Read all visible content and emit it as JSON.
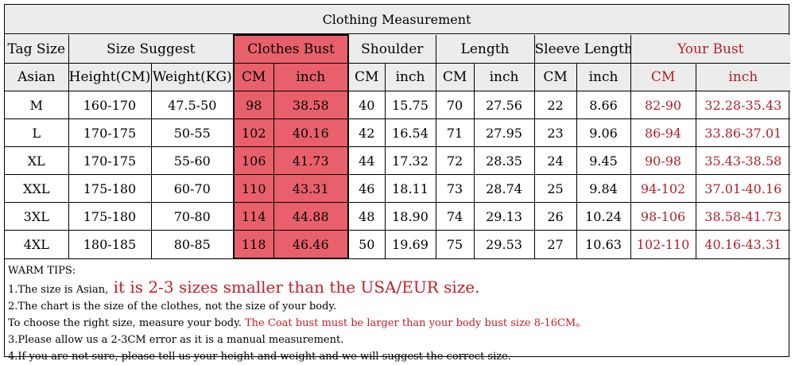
{
  "title": "Clothing Measurement",
  "headers": {
    "tag_size": "Tag Size",
    "size_suggest": "Size Suggest",
    "clothes_bust": "Clothes Bust",
    "shoulder": "Shoulder",
    "length": "Length",
    "sleeve_length": "Sleeve Length",
    "your_bust": "Your Bust"
  },
  "subheaders": {
    "asian": "Asian",
    "height": "Height(CM)",
    "weight": "Weight(KG)",
    "bust_cm": "CM",
    "bust_inch": "inch",
    "shoulder_cm": "CM",
    "shoulder_inch": "inch",
    "length_cm": "CM",
    "length_inch": "inch",
    "sleeve_cm": "CM",
    "sleeve_inch": "inch",
    "your_cm": "CM",
    "your_inch": "inch"
  },
  "rows": [
    {
      "size": "M",
      "height": "160-170",
      "weight": "47.5-50",
      "bust_cm": "98",
      "bust_inch": "38.58",
      "shoulder_cm": "40",
      "shoulder_inch": "15.75",
      "length_cm": "70",
      "length_inch": "27.56",
      "sleeve_cm": "22",
      "sleeve_inch": "8.66",
      "your_cm": "82-90",
      "your_inch": "32.28-35.43"
    },
    {
      "size": "L",
      "height": "170-175",
      "weight": "50-55",
      "bust_cm": "102",
      "bust_inch": "40.16",
      "shoulder_cm": "42",
      "shoulder_inch": "16.54",
      "length_cm": "71",
      "length_inch": "27.95",
      "sleeve_cm": "23",
      "sleeve_inch": "9.06",
      "your_cm": "86-94",
      "your_inch": "33.86-37.01"
    },
    {
      "size": "XL",
      "height": "170-175",
      "weight": "55-60",
      "bust_cm": "106",
      "bust_inch": "41.73",
      "shoulder_cm": "44",
      "shoulder_inch": "17.32",
      "length_cm": "72",
      "length_inch": "28.35",
      "sleeve_cm": "24",
      "sleeve_inch": "9.45",
      "your_cm": "90-98",
      "your_inch": "35.43-38.58"
    },
    {
      "size": "XXL",
      "height": "175-180",
      "weight": "60-70",
      "bust_cm": "110",
      "bust_inch": "43.31",
      "shoulder_cm": "46",
      "shoulder_inch": "18.11",
      "length_cm": "73",
      "length_inch": "28.74",
      "sleeve_cm": "25",
      "sleeve_inch": "9.84",
      "your_cm": "94-102",
      "your_inch": "37.01-40.16"
    },
    {
      "size": "3XL",
      "height": "175-180",
      "weight": "70-80",
      "bust_cm": "114",
      "bust_inch": "44.88",
      "shoulder_cm": "48",
      "shoulder_inch": "18.90",
      "length_cm": "74",
      "length_inch": "29.13",
      "sleeve_cm": "26",
      "sleeve_inch": "10.24",
      "your_cm": "98-106",
      "your_inch": "38.58-41.73"
    },
    {
      "size": "4XL",
      "height": "180-185",
      "weight": "80-85",
      "bust_cm": "118",
      "bust_inch": "46.46",
      "shoulder_cm": "50",
      "shoulder_inch": "19.69",
      "length_cm": "75",
      "length_inch": "29.53",
      "sleeve_cm": "27",
      "sleeve_inch": "10.63",
      "your_cm": "102-110",
      "your_inch": "40.16-43.31"
    }
  ],
  "tips": {
    "heading": "WARM TIPS:",
    "tip1_prefix": "1.The size is Asian,",
    "tip1_highlight": " it is 2-3 sizes smaller than the USA/EUR size.",
    "tip2": "2.The chart is the size of the clothes, not the size of your body.",
    "tip2b_prefix": "To choose the right size, measure your body.",
    "tip2b_highlight": " The Coat bust must be larger than your body bust size 8-16CM。",
    "tip3": "3.Please allow us a 2-3CM error as it is a manual measurement.",
    "tip4": "4.If you are not sure, please tell us your height and weight and we will suggest the correct size."
  },
  "colors": {
    "bust_highlight": "#e8606b",
    "header_bg": "#ececec",
    "your_bust_text": "#b0202a"
  }
}
